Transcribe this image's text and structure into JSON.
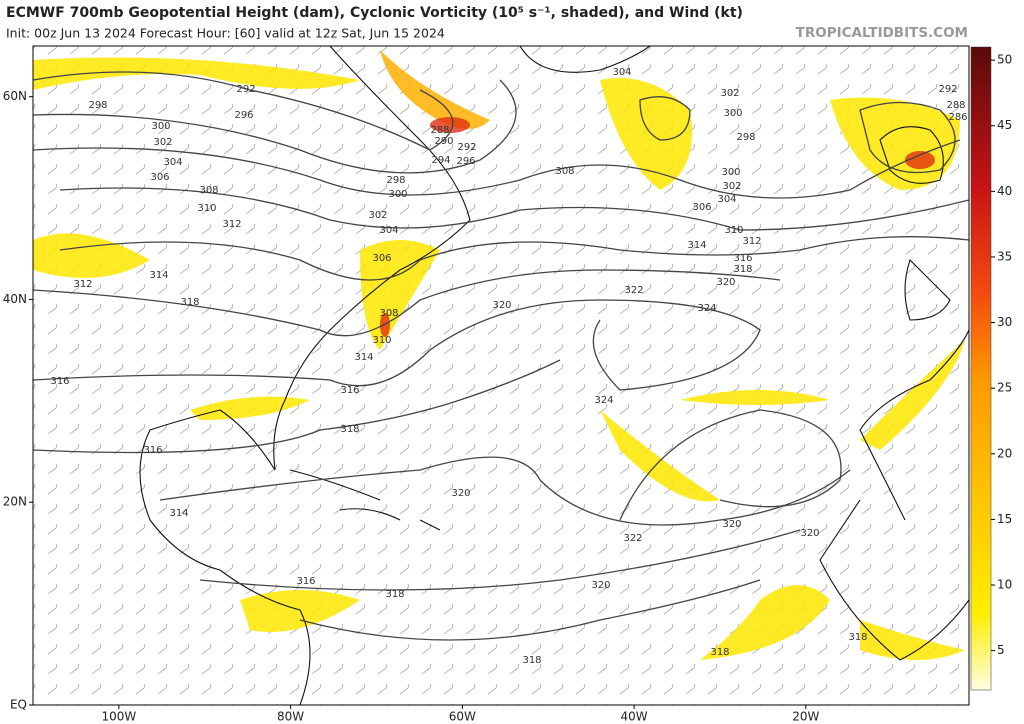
{
  "header": {
    "title": "ECMWF 700mb Geopotential Height (dam), Cyclonic Vorticity (10⁵ s⁻¹, shaded), and Wind (kt)",
    "subtitle": "Init: 00z Jun 13 2024   Forecast Hour: [60]   valid at 12z Sat, Jun 15 2024",
    "site": "TROPICALTIDBITS.COM"
  },
  "map": {
    "lonlim": [
      -110,
      -1
    ],
    "latlim": [
      0,
      65
    ],
    "lon_ticks": [
      {
        "value": -100,
        "label": "100W"
      },
      {
        "value": -80,
        "label": "80W"
      },
      {
        "value": -60,
        "label": "60W"
      },
      {
        "value": -40,
        "label": "40W"
      },
      {
        "value": -20,
        "label": "20W"
      }
    ],
    "lat_ticks": [
      {
        "value": 60,
        "label": "60N"
      },
      {
        "value": 40,
        "label": "40N"
      },
      {
        "value": 20,
        "label": "20N"
      },
      {
        "value": 0,
        "label": "EQ"
      }
    ],
    "contour_labels": [
      298,
      300,
      302,
      304,
      306,
      308,
      310,
      312,
      314,
      312,
      318,
      316,
      316,
      314,
      316,
      318,
      318,
      318,
      318,
      320,
      320,
      322,
      320,
      320,
      316,
      318,
      314,
      310,
      308,
      306,
      304,
      302,
      300,
      298,
      294,
      290,
      288,
      292,
      296,
      292,
      296,
      308,
      320,
      322,
      324,
      324,
      314,
      316,
      318,
      320,
      312,
      310,
      304,
      306,
      302,
      300,
      298,
      300,
      302,
      304,
      292,
      288,
      286
    ]
  },
  "colorbar": {
    "lim": [
      2,
      51
    ],
    "ticks": [
      5,
      10,
      15,
      20,
      25,
      30,
      35,
      40,
      45,
      50
    ]
  }
}
